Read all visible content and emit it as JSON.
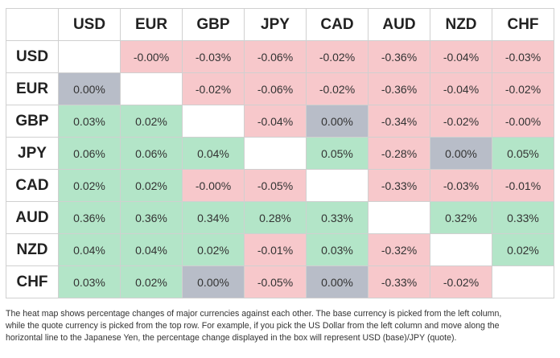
{
  "table": {
    "columns": [
      "USD",
      "EUR",
      "GBP",
      "JPY",
      "CAD",
      "AUD",
      "NZD",
      "CHF"
    ],
    "rows": [
      {
        "label": "USD",
        "cells": [
          null,
          "-0.00%",
          "-0.03%",
          "-0.06%",
          "-0.02%",
          "-0.36%",
          "-0.04%",
          "-0.03%"
        ]
      },
      {
        "label": "EUR",
        "cells": [
          "0.00%",
          null,
          "-0.02%",
          "-0.06%",
          "-0.02%",
          "-0.36%",
          "-0.04%",
          "-0.02%"
        ]
      },
      {
        "label": "GBP",
        "cells": [
          "0.03%",
          "0.02%",
          null,
          "-0.04%",
          "0.00%",
          "-0.34%",
          "-0.02%",
          "-0.00%"
        ]
      },
      {
        "label": "JPY",
        "cells": [
          "0.06%",
          "0.06%",
          "0.04%",
          null,
          "0.05%",
          "-0.28%",
          "0.00%",
          "0.05%"
        ]
      },
      {
        "label": "CAD",
        "cells": [
          "0.02%",
          "0.02%",
          "-0.00%",
          "-0.05%",
          null,
          "-0.33%",
          "-0.03%",
          "-0.01%"
        ]
      },
      {
        "label": "AUD",
        "cells": [
          "0.36%",
          "0.36%",
          "0.34%",
          "0.28%",
          "0.33%",
          null,
          "0.32%",
          "0.33%"
        ]
      },
      {
        "label": "NZD",
        "cells": [
          "0.04%",
          "0.04%",
          "0.02%",
          "-0.01%",
          "0.03%",
          "-0.32%",
          null,
          "0.02%"
        ]
      },
      {
        "label": "CHF",
        "cells": [
          "0.03%",
          "0.02%",
          "0.00%",
          "-0.05%",
          "0.00%",
          "-0.33%",
          "-0.02%",
          null
        ]
      }
    ]
  },
  "footer": {
    "lines": [
      "The heat map shows percentage changes of major currencies against each other. The base currency is picked from the left column,",
      "while the quote currency is picked from the top row. For example, if you pick the US Dollar from the left column and move along the",
      "horizontal line to the Japanese Yen, the percentage change displayed in the box will represent USD (base)/JPY (quote)."
    ]
  }
}
